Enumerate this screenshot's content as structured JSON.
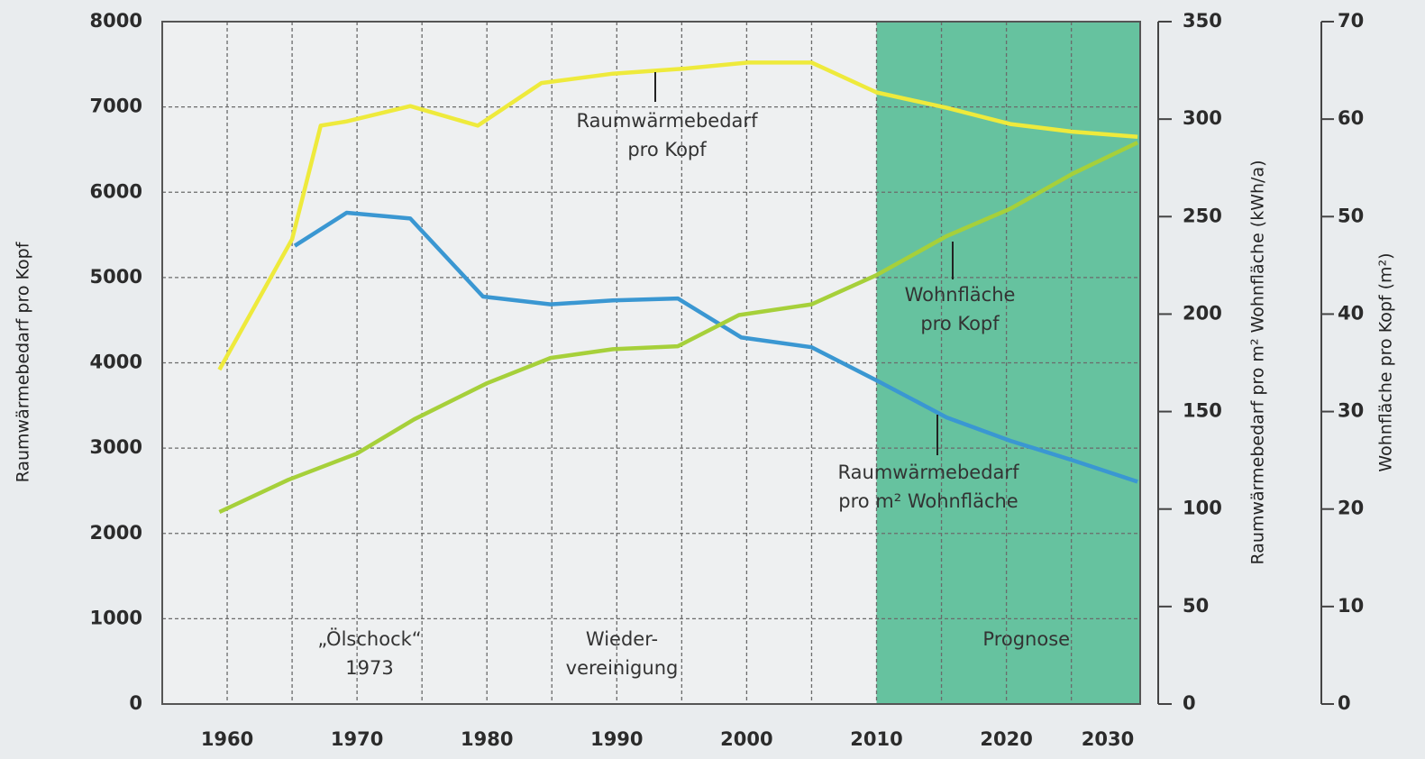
{
  "chart_data": {
    "type": "line",
    "ylabel": "Raumwärmebedarf pro Kopf",
    "y2label": "Raumwärmebedarf pro m² Wohnfläche (kWh/a)",
    "y3label": "Wohnfläche pro Kopf (m²)",
    "xlim": [
      1955,
      2030.3
    ],
    "xticks": [
      1960,
      1970,
      1980,
      1990,
      2000,
      2010,
      2020,
      2030
    ],
    "xgrid": [
      1960,
      1965,
      1970,
      1975,
      1980,
      1985,
      1990,
      1995,
      2000,
      2005,
      2010,
      2015,
      2020,
      2025
    ],
    "ylim": [
      0,
      8000
    ],
    "yticks": [
      0,
      1000,
      2000,
      3000,
      4000,
      5000,
      6000,
      7000,
      8000
    ],
    "y2lim": [
      0,
      350
    ],
    "y2ticks": [
      0,
      50,
      100,
      150,
      200,
      250,
      300,
      350
    ],
    "y3lim": [
      0,
      70
    ],
    "y3ticks": [
      0,
      10,
      20,
      30,
      40,
      50,
      60,
      70
    ],
    "grid": true,
    "shade": {
      "from": 2010,
      "label": "Prognose",
      "color": "#66c29f"
    },
    "series": [
      {
        "name": "Raumwärmebedarf pro Kopf",
        "color": "#eeea3c",
        "axis": "y",
        "x": [
          1959.4,
          1965,
          1967.2,
          1969.2,
          1974.1,
          1979.3,
          1984.2,
          1989.7,
          1995.3,
          2000.1,
          2005,
          2010,
          2015.4,
          2020.3,
          2025.1,
          2030.1
        ],
        "values": [
          3920,
          5450,
          6780,
          6830,
          7010,
          6780,
          7280,
          7390,
          7450,
          7520,
          7520,
          7170,
          6990,
          6800,
          6710,
          6650
        ]
      },
      {
        "name": "Raumwärmebedarf pro m² Wohnfläche",
        "color": "#3a97d2",
        "axis": "y2",
        "x": [
          1965.2,
          1969.2,
          1974.1,
          1979.7,
          1984.9,
          1989.7,
          1994.7,
          1999.6,
          2005,
          2010,
          2015.4,
          2020.3,
          2025.1,
          2030.1
        ],
        "values": [
          235,
          252,
          249,
          209,
          205,
          207,
          208,
          188,
          183,
          166,
          147,
          135,
          125,
          114
        ]
      },
      {
        "name": "Wohnfläche pro Kopf",
        "color": "#a6d03a",
        "axis": "y3",
        "x": [
          1959.4,
          1964.7,
          1970,
          1974.4,
          1980,
          1984.9,
          1989.7,
          1994.7,
          1999.4,
          2005,
          2010,
          2015.4,
          2020.3,
          2025.1,
          2030.1
        ],
        "values": [
          19.7,
          23.0,
          25.7,
          29.2,
          32.9,
          35.5,
          36.4,
          36.7,
          39.9,
          41.0,
          44.0,
          48.0,
          50.8,
          54.4,
          57.6
        ]
      }
    ],
    "annotations": [
      {
        "lines": [
          "Raumwärmebedarf",
          "pro Kopf"
        ]
      },
      {
        "lines": [
          "Wohnfläche",
          "pro Kopf"
        ]
      },
      {
        "lines": [
          "Raumwärmebedarf",
          "pro m² Wohnfläche"
        ]
      },
      {
        "lines": [
          "„Ölschock“",
          "1973"
        ]
      },
      {
        "lines": [
          "Wieder-",
          "vereinigung"
        ]
      }
    ]
  }
}
